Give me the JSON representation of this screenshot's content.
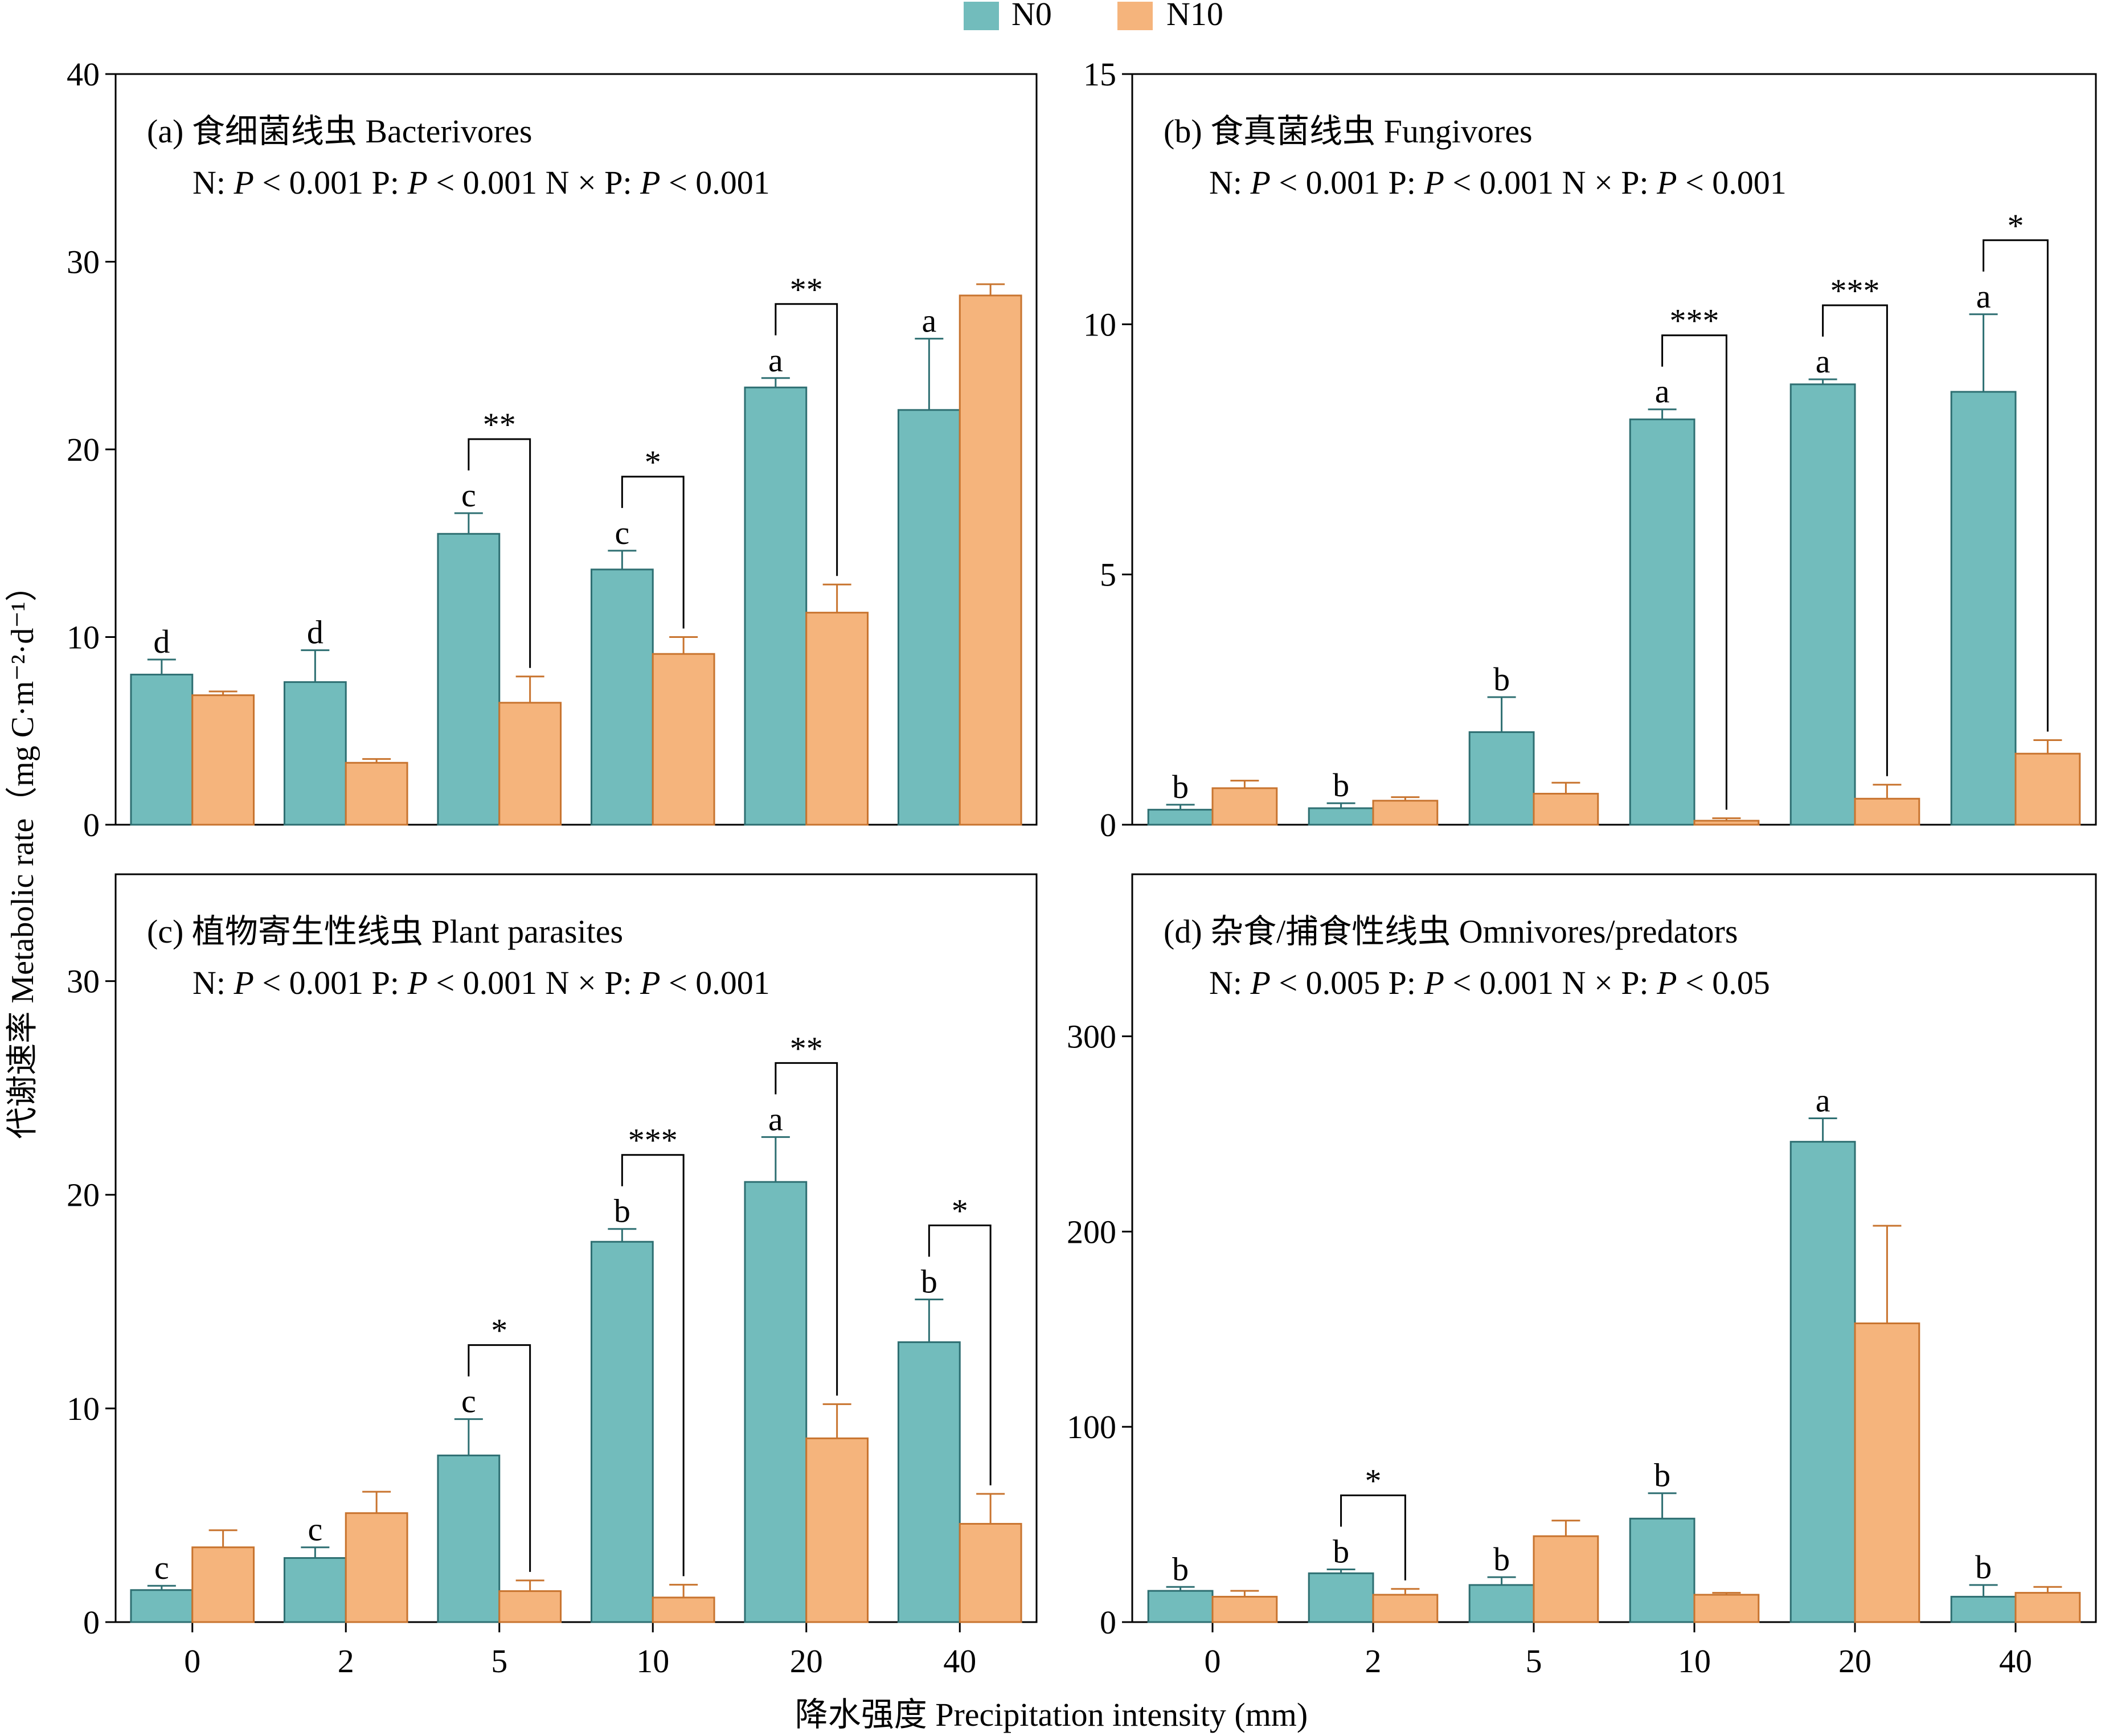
{
  "legend": {
    "items": [
      {
        "label": "N0",
        "color": "#72BCBC"
      },
      {
        "label": "N10",
        "color": "#F5B47C"
      }
    ]
  },
  "y_axis_label": "代谢速率 Metabolic rate（mg C·m⁻²·d⁻¹）",
  "x_axis_label": "降水强度 Precipitation intensity (mm)",
  "colors": {
    "n0_fill": "#72BCBC",
    "n0_stroke": "#2E6F72",
    "n10_fill": "#F5B47C",
    "n10_stroke": "#C8742F"
  },
  "chart_data": [
    {
      "type": "bar",
      "panel": "a",
      "title": "(a) 食细菌线虫 Bacterivores",
      "stats": "N: P < 0.001 P: P < 0.001 N × P: P < 0.001",
      "stats_parts": [
        "N: ",
        "P",
        " < 0.001   P: ",
        "P",
        " < 0.001   N × P: ",
        "P",
        " < 0.001"
      ],
      "categories": [
        "0",
        "2",
        "5",
        "10",
        "20",
        "40"
      ],
      "ylim": [
        0,
        40
      ],
      "yticks": [
        0,
        10,
        20,
        30,
        40
      ],
      "series": [
        {
          "name": "N0",
          "values": [
            8.0,
            7.6,
            15.5,
            13.6,
            23.3,
            22.1
          ],
          "errors": [
            0.8,
            1.7,
            1.1,
            1.0,
            0.5,
            3.8
          ],
          "letters": [
            "d",
            "d",
            "c",
            "c",
            "a",
            "a"
          ]
        },
        {
          "name": "N10",
          "values": [
            6.9,
            3.3,
            6.5,
            9.1,
            11.3,
            28.2
          ],
          "errors": [
            0.2,
            0.2,
            1.4,
            0.9,
            1.5,
            0.6
          ]
        }
      ],
      "significance": [
        {
          "index": 2,
          "label": "**"
        },
        {
          "index": 3,
          "label": "*"
        },
        {
          "index": 4,
          "label": "**"
        }
      ]
    },
    {
      "type": "bar",
      "panel": "b",
      "title": "(b) 食真菌线虫 Fungivores",
      "stats": "N: P < 0.001 P: P < 0.001 N × P: P < 0.001",
      "stats_parts": [
        "N: ",
        "P",
        " < 0.001   P: ",
        "P",
        " < 0.001   N × P: ",
        "P",
        " < 0.001"
      ],
      "categories": [
        "0",
        "2",
        "5",
        "10",
        "20",
        "40"
      ],
      "ylim": [
        0,
        15
      ],
      "yticks": [
        0,
        5,
        10,
        15
      ],
      "series": [
        {
          "name": "N0",
          "values": [
            0.3,
            0.33,
            1.85,
            8.1,
            8.8,
            8.65
          ],
          "errors": [
            0.1,
            0.1,
            0.7,
            0.2,
            0.1,
            1.55
          ],
          "letters": [
            "b",
            "b",
            "b",
            "a",
            "a",
            "a"
          ]
        },
        {
          "name": "N10",
          "values": [
            0.73,
            0.48,
            0.62,
            0.08,
            0.52,
            1.42
          ],
          "errors": [
            0.15,
            0.07,
            0.22,
            0.05,
            0.28,
            0.27
          ]
        }
      ],
      "significance": [
        {
          "index": 3,
          "label": "***"
        },
        {
          "index": 4,
          "label": "***"
        },
        {
          "index": 5,
          "label": "*"
        }
      ]
    },
    {
      "type": "bar",
      "panel": "c",
      "title": "(c) 植物寄生性线虫 Plant parasites",
      "stats": "N: P < 0.001 P: P < 0.001 N × P: P < 0.001",
      "stats_parts": [
        "N: ",
        "P",
        " < 0.001   P: ",
        "P",
        " < 0.001   N × P: ",
        "P",
        " < 0.001"
      ],
      "categories": [
        "0",
        "2",
        "5",
        "10",
        "20",
        "40"
      ],
      "ylim": [
        0,
        35
      ],
      "yticks": [
        0,
        10,
        20,
        30
      ],
      "series": [
        {
          "name": "N0",
          "values": [
            1.5,
            3.0,
            7.8,
            17.8,
            20.6,
            13.1
          ],
          "errors": [
            0.2,
            0.5,
            1.7,
            0.6,
            2.1,
            2.0
          ],
          "letters": [
            "c",
            "c",
            "c",
            "b",
            "a",
            "b"
          ]
        },
        {
          "name": "N10",
          "values": [
            3.5,
            5.1,
            1.45,
            1.15,
            8.6,
            4.6
          ],
          "errors": [
            0.8,
            1.0,
            0.5,
            0.6,
            1.6,
            1.4
          ]
        }
      ],
      "significance": [
        {
          "index": 2,
          "label": "*"
        },
        {
          "index": 3,
          "label": "***"
        },
        {
          "index": 4,
          "label": "**"
        },
        {
          "index": 5,
          "label": "*"
        }
      ]
    },
    {
      "type": "bar",
      "panel": "d",
      "title": "(d) 杂食/捕食性线虫 Omnivores/predators",
      "stats": "N: P < 0.005 P: P < 0.001 N × P: P < 0.05",
      "stats_parts": [
        "N: ",
        "P",
        " < 0.005   P: ",
        "P",
        " < 0.001   N × P: ",
        "P",
        " < 0.05"
      ],
      "categories": [
        "0",
        "2",
        "5",
        "10",
        "20",
        "40"
      ],
      "ylim": [
        0,
        383
      ],
      "yticks": [
        0,
        100,
        200,
        300
      ],
      "series": [
        {
          "name": "N0",
          "values": [
            16,
            25,
            19,
            53,
            246,
            13
          ],
          "errors": [
            2,
            2,
            4,
            13,
            12,
            6
          ],
          "letters": [
            "b",
            "b",
            "b",
            "b",
            "a",
            "b"
          ]
        },
        {
          "name": "N10",
          "values": [
            13,
            14,
            44,
            14,
            153,
            15
          ],
          "errors": [
            3,
            3,
            8,
            1,
            50,
            3
          ]
        }
      ],
      "significance": [
        {
          "index": 1,
          "label": "*"
        }
      ]
    }
  ]
}
